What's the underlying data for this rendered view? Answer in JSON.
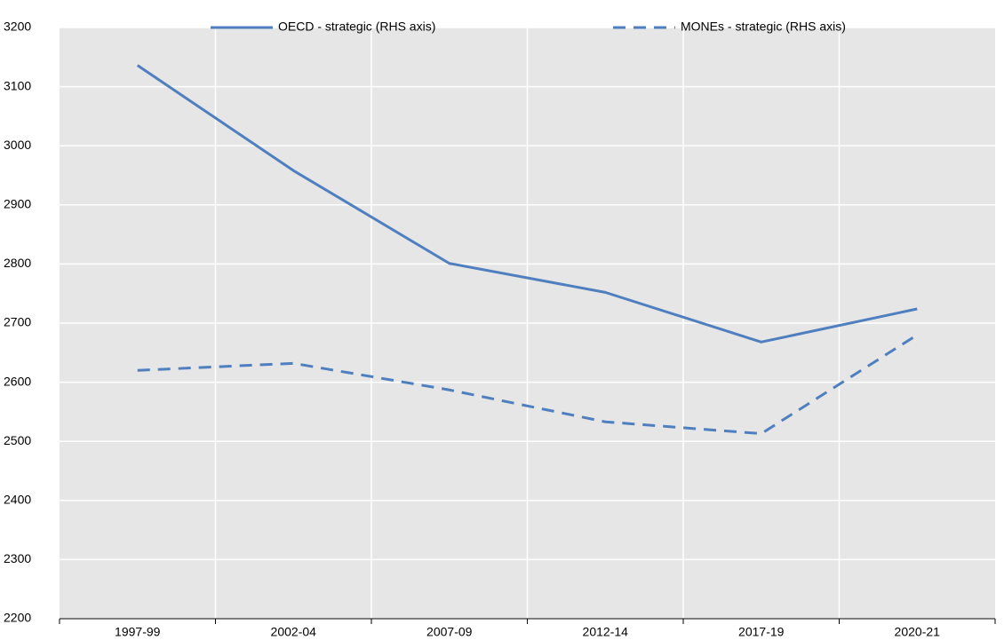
{
  "chart_data": {
    "type": "line",
    "categories": [
      "1997-99",
      "2002-04",
      "2007-09",
      "2012-14",
      "2017-19",
      "2020-21"
    ],
    "series": [
      {
        "name": "OECD - strategic (RHS axis)",
        "color": "#4f7fbf",
        "line_style": "solid",
        "values": [
          3136,
          2958,
          2801,
          2752,
          2668,
          2724
        ]
      },
      {
        "name": "MONEs - strategic (RHS axis)",
        "color": "#4f7fbf",
        "line_style": "dashed",
        "values": [
          2620,
          2632,
          2587,
          2533,
          2513,
          2680
        ]
      }
    ],
    "ylim": [
      2200,
      3200
    ],
    "yticks": [
      2200,
      2300,
      2400,
      2500,
      2600,
      2700,
      2800,
      2900,
      3000,
      3100,
      3200
    ],
    "grid": true,
    "legend": "top"
  }
}
